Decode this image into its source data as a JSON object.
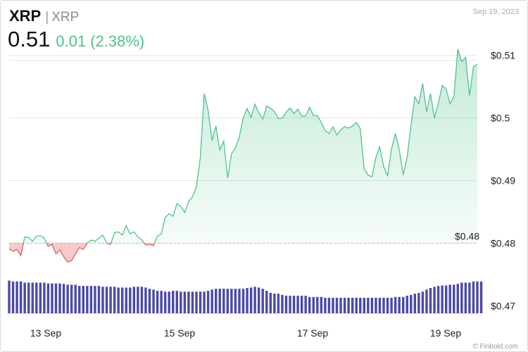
{
  "header": {
    "symbol": "XRP",
    "separator": "|",
    "name": "XRP",
    "price": "0.51",
    "change": "0.01",
    "change_pct": "(2.38%)",
    "date": "Sep 19, 2023"
  },
  "watermark": "© Finbold.com",
  "colors": {
    "up": "#4fc38a",
    "down": "#e06060",
    "volume": "#4b49a8",
    "grid": "#e6e6e6",
    "reference_line": "#bbbbbb"
  },
  "chart_data": {
    "type": "area",
    "title": "",
    "xlabel": "",
    "ylabel": "",
    "x_ticks": [
      "13 Sep",
      "15 Sep",
      "17 Sep",
      "19 Sep"
    ],
    "y_ticks": [
      "$0.47",
      "$0.48",
      "$0.49",
      "$0.5",
      "$0.51"
    ],
    "ylim": [
      0.4688,
      0.5121
    ],
    "reference_value": 0.48,
    "reference_label": "$0.48",
    "grid": true,
    "price_series": {
      "name": "",
      "values": [
        0.4791,
        0.4787,
        0.479,
        0.478,
        0.481,
        0.4809,
        0.4803,
        0.4811,
        0.4812,
        0.4808,
        0.4795,
        0.4798,
        0.4783,
        0.4789,
        0.4778,
        0.477,
        0.4772,
        0.4783,
        0.4793,
        0.479,
        0.48,
        0.4805,
        0.4803,
        0.4808,
        0.4813,
        0.48,
        0.4798,
        0.4817,
        0.4818,
        0.4813,
        0.4828,
        0.4815,
        0.4818,
        0.481,
        0.4805,
        0.4797,
        0.4798,
        0.4796,
        0.4811,
        0.4815,
        0.4841,
        0.4847,
        0.4843,
        0.4863,
        0.4859,
        0.4849,
        0.4867,
        0.4874,
        0.489,
        0.4937,
        0.5039,
        0.5012,
        0.4964,
        0.4987,
        0.4949,
        0.4963,
        0.4904,
        0.4943,
        0.4952,
        0.497,
        0.5,
        0.5015,
        0.5001,
        0.5022,
        0.5008,
        0.4998,
        0.5019,
        0.5016,
        0.501,
        0.4999,
        0.5,
        0.5009,
        0.5016,
        0.5007,
        0.5014,
        0.5003,
        0.5003,
        0.5017,
        0.5004,
        0.5004,
        0.4993,
        0.498,
        0.4975,
        0.4986,
        0.4973,
        0.4981,
        0.4986,
        0.4984,
        0.4987,
        0.4993,
        0.4983,
        0.4919,
        0.4909,
        0.4906,
        0.4937,
        0.4954,
        0.4922,
        0.4908,
        0.495,
        0.4975,
        0.4949,
        0.4909,
        0.4937,
        0.4988,
        0.5034,
        0.5023,
        0.5055,
        0.501,
        0.5039,
        0.5,
        0.5023,
        0.5052,
        0.5046,
        0.5023,
        0.5034,
        0.511,
        0.509,
        0.5097,
        0.5036,
        0.5082,
        0.5086
      ]
    },
    "volume_series": {
      "name": "",
      "values": [
        0.8,
        0.78,
        0.78,
        0.78,
        0.75,
        0.75,
        0.75,
        0.75,
        0.75,
        0.75,
        0.73,
        0.73,
        0.73,
        0.73,
        0.72,
        0.7,
        0.7,
        0.7,
        0.67,
        0.67,
        0.67,
        0.67,
        0.67,
        0.67,
        0.65,
        0.65,
        0.65,
        0.65,
        0.63,
        0.63,
        0.63,
        0.63,
        0.65,
        0.65,
        0.65,
        0.63,
        0.6,
        0.58,
        0.55,
        0.55,
        0.53,
        0.53,
        0.55,
        0.55,
        0.53,
        0.53,
        0.53,
        0.53,
        0.53,
        0.53,
        0.53,
        0.55,
        0.58,
        0.6,
        0.6,
        0.6,
        0.6,
        0.6,
        0.6,
        0.6,
        0.6,
        0.62,
        0.63,
        0.65,
        0.63,
        0.6,
        0.55,
        0.5,
        0.48,
        0.48,
        0.45,
        0.43,
        0.43,
        0.43,
        0.43,
        0.43,
        0.43,
        0.4,
        0.4,
        0.4,
        0.4,
        0.38,
        0.38,
        0.38,
        0.38,
        0.38,
        0.38,
        0.38,
        0.38,
        0.38,
        0.38,
        0.38,
        0.38,
        0.38,
        0.38,
        0.38,
        0.38,
        0.38,
        0.38,
        0.4,
        0.4,
        0.4,
        0.43,
        0.45,
        0.48,
        0.5,
        0.53,
        0.58,
        0.62,
        0.65,
        0.67,
        0.68,
        0.68,
        0.7,
        0.7,
        0.72,
        0.75,
        0.75,
        0.75,
        0.78,
        0.78,
        0.78
      ]
    }
  }
}
